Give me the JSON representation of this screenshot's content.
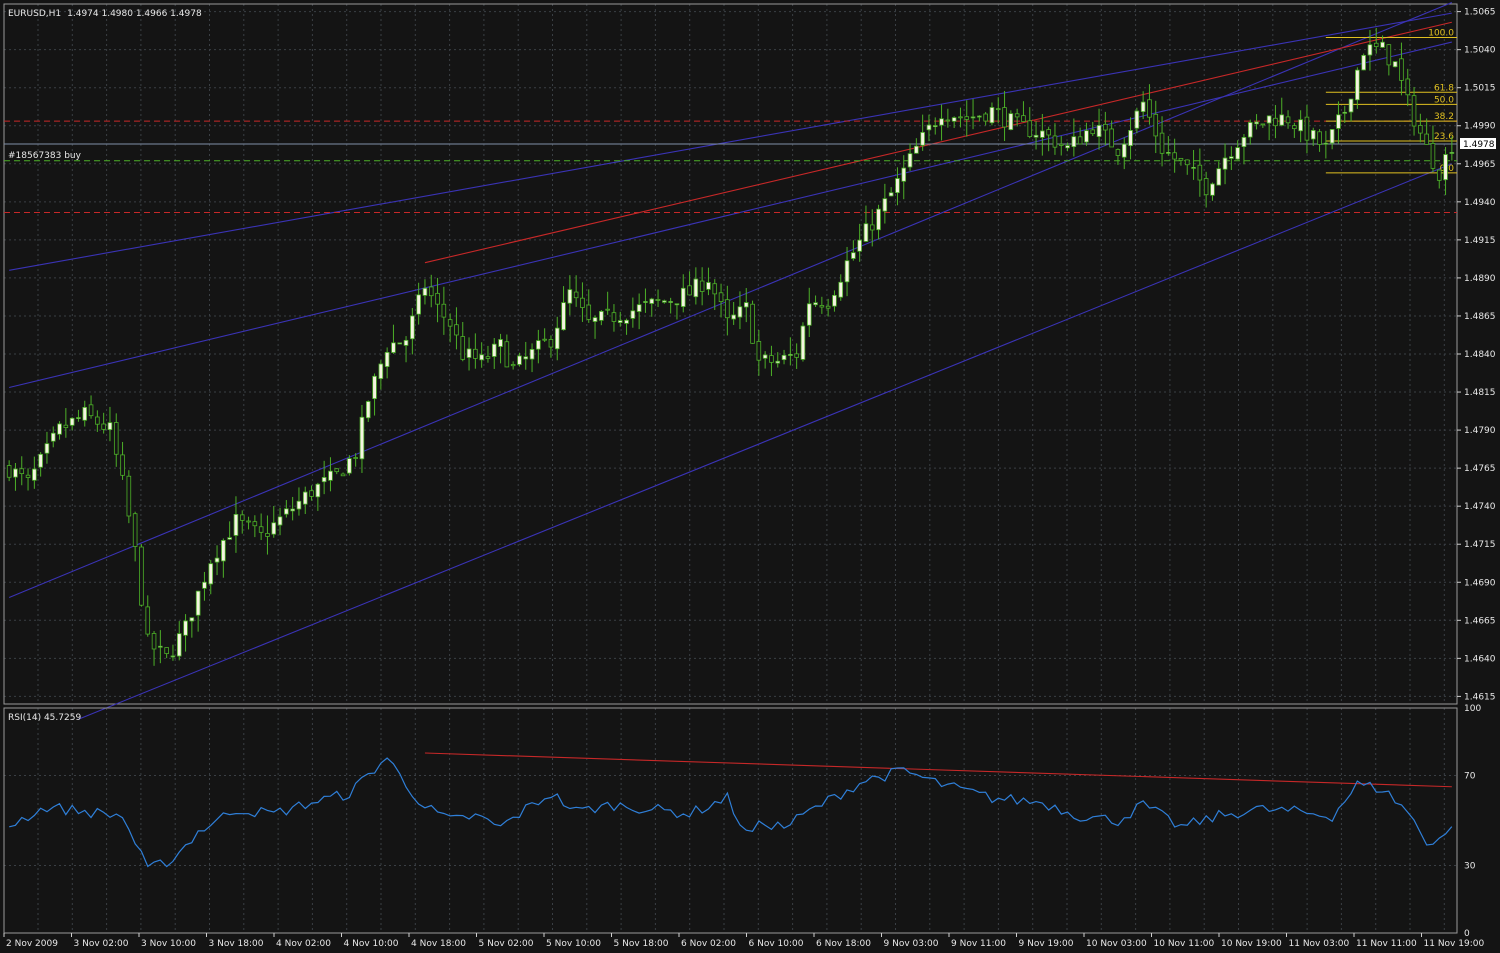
{
  "main_header": {
    "symbol": "EURUSD,H1",
    "ohlc": "1.4974 1.4980 1.4966 1.4978"
  },
  "order_label": "#18567383 buy",
  "current_price_label": "1.4978",
  "rsi_header": "RSI(14) 45.7259",
  "colors": {
    "background": "#141414",
    "grid": "#3a3f44",
    "bull_candle": "#f4f4e0",
    "bear_candle": "#141414",
    "wick": "#4caf28",
    "trendline_blue": "#3a33b5",
    "trendline_red": "#c62828",
    "fibonacci": "#e0c020",
    "rsi_line": "#2f7fd8",
    "axis_text": "#e8e8e8"
  },
  "fibonacci_levels": [
    {
      "label": "100.0",
      "price": 1.5048
    },
    {
      "label": "61.8",
      "price": 1.5012
    },
    {
      "label": "50.0",
      "price": 1.5004
    },
    {
      "label": "38.2",
      "price": 1.4993
    },
    {
      "label": "23.6",
      "price": 1.498
    },
    {
      "label": "0.0",
      "price": 1.4959
    }
  ],
  "chart_data": {
    "type": "candlestick",
    "timeframe": "H1",
    "symbol": "EURUSD",
    "price_axis": {
      "range": [
        1.461,
        1.507
      ],
      "ticks": [
        "1.5065",
        "1.5040",
        "1.5015",
        "1.4990",
        "1.4965",
        "1.4940",
        "1.4915",
        "1.4890",
        "1.4865",
        "1.4840",
        "1.4815",
        "1.4790",
        "1.4765",
        "1.4740",
        "1.4715",
        "1.4690",
        "1.4665",
        "1.4640",
        "1.4615"
      ],
      "current_price": 1.4978
    },
    "time_axis_labels": [
      "2 Nov 2009",
      "3 Nov 02:00",
      "3 Nov 10:00",
      "3 Nov 18:00",
      "4 Nov 02:00",
      "4 Nov 10:00",
      "4 Nov 18:00",
      "5 Nov 02:00",
      "5 Nov 10:00",
      "5 Nov 18:00",
      "6 Nov 02:00",
      "6 Nov 10:00",
      "6 Nov 18:00",
      "9 Nov 03:00",
      "9 Nov 11:00",
      "9 Nov 19:00",
      "10 Nov 03:00",
      "10 Nov 11:00",
      "10 Nov 19:00",
      "11 Nov 03:00",
      "11 Nov 11:00",
      "11 Nov 19:00"
    ],
    "close_anchors": [
      [
        0,
        1.4765
      ],
      [
        3,
        1.4755
      ],
      [
        8,
        1.479
      ],
      [
        12,
        1.48
      ],
      [
        16,
        1.479
      ],
      [
        18,
        1.4755
      ],
      [
        20,
        1.471
      ],
      [
        22,
        1.465
      ],
      [
        25,
        1.464
      ],
      [
        28,
        1.466
      ],
      [
        32,
        1.4705
      ],
      [
        36,
        1.473
      ],
      [
        40,
        1.472
      ],
      [
        44,
        1.4735
      ],
      [
        48,
        1.475
      ],
      [
        52,
        1.476
      ],
      [
        55,
        1.4775
      ],
      [
        57,
        1.481
      ],
      [
        60,
        1.4845
      ],
      [
        63,
        1.485
      ],
      [
        66,
        1.4885
      ],
      [
        68,
        1.487
      ],
      [
        70,
        1.486
      ],
      [
        72,
        1.484
      ],
      [
        75,
        1.4835
      ],
      [
        78,
        1.4845
      ],
      [
        80,
        1.483
      ],
      [
        83,
        1.484
      ],
      [
        86,
        1.485
      ],
      [
        89,
        1.488
      ],
      [
        92,
        1.486
      ],
      [
        96,
        1.4865
      ],
      [
        100,
        1.487
      ],
      [
        104,
        1.4875
      ],
      [
        108,
        1.488
      ],
      [
        111,
        1.489
      ],
      [
        114,
        1.486
      ],
      [
        117,
        1.487
      ],
      [
        119,
        1.4835
      ],
      [
        122,
        1.4835
      ],
      [
        125,
        1.484
      ],
      [
        127,
        1.4875
      ],
      [
        130,
        1.4875
      ],
      [
        133,
        1.49
      ],
      [
        136,
        1.492
      ],
      [
        140,
        1.4945
      ],
      [
        144,
        1.4975
      ],
      [
        148,
        1.5
      ],
      [
        152,
        1.4995
      ],
      [
        156,
        1.5
      ],
      [
        160,
        1.499
      ],
      [
        164,
        1.4985
      ],
      [
        168,
        1.4975
      ],
      [
        172,
        1.499
      ],
      [
        176,
        1.4975
      ],
      [
        180,
        1.5005
      ],
      [
        183,
        1.4975
      ],
      [
        186,
        1.4965
      ],
      [
        190,
        1.495
      ],
      [
        193,
        1.497
      ],
      [
        196,
        1.4985
      ],
      [
        200,
        1.4995
      ],
      [
        203,
        1.4995
      ],
      [
        206,
        1.4985
      ],
      [
        209,
        1.4975
      ],
      [
        212,
        1.5
      ],
      [
        215,
        1.504
      ],
      [
        218,
        1.504
      ],
      [
        220,
        1.503
      ],
      [
        222,
        1.5005
      ],
      [
        225,
        1.4975
      ],
      [
        227,
        1.496
      ],
      [
        229,
        1.4978
      ]
    ],
    "rsi": {
      "name": "RSI(14)",
      "current": 45.7259,
      "levels": [
        30,
        70
      ],
      "range": [
        0,
        100
      ],
      "ticks": [
        "100",
        "70",
        "30",
        "0"
      ],
      "anchors": [
        [
          0,
          48
        ],
        [
          6,
          56
        ],
        [
          12,
          54
        ],
        [
          18,
          52
        ],
        [
          22,
          28
        ],
        [
          26,
          33
        ],
        [
          30,
          45
        ],
        [
          36,
          55
        ],
        [
          42,
          53
        ],
        [
          48,
          58
        ],
        [
          54,
          62
        ],
        [
          58,
          73
        ],
        [
          60,
          78
        ],
        [
          63,
          66
        ],
        [
          66,
          56
        ],
        [
          70,
          50
        ],
        [
          74,
          52
        ],
        [
          78,
          47
        ],
        [
          82,
          55
        ],
        [
          86,
          62
        ],
        [
          90,
          54
        ],
        [
          96,
          57
        ],
        [
          102,
          55
        ],
        [
          108,
          53
        ],
        [
          114,
          60
        ],
        [
          117,
          44
        ],
        [
          120,
          49
        ],
        [
          123,
          47
        ],
        [
          127,
          54
        ],
        [
          132,
          62
        ],
        [
          136,
          68
        ],
        [
          142,
          72
        ],
        [
          148,
          66
        ],
        [
          156,
          60
        ],
        [
          164,
          58
        ],
        [
          170,
          52
        ],
        [
          176,
          50
        ],
        [
          180,
          57
        ],
        [
          186,
          47
        ],
        [
          192,
          52
        ],
        [
          198,
          55
        ],
        [
          204,
          54
        ],
        [
          210,
          52
        ],
        [
          214,
          66
        ],
        [
          218,
          64
        ],
        [
          222,
          54
        ],
        [
          225,
          40
        ],
        [
          228,
          44
        ],
        [
          229,
          46
        ]
      ]
    },
    "annotations": [
      {
        "type": "trendline",
        "panel": "price",
        "color": "blue",
        "from": [
          0,
          1.4895
        ],
        "to": [
          229,
          1.5064
        ]
      },
      {
        "type": "trendline",
        "panel": "price",
        "color": "blue",
        "from": [
          0,
          1.4818
        ],
        "to": [
          229,
          1.5045
        ]
      },
      {
        "type": "trendline",
        "panel": "price",
        "color": "blue",
        "from": [
          0,
          1.468
        ],
        "to": [
          229,
          1.5071
        ]
      },
      {
        "type": "trendline",
        "panel": "price",
        "color": "blue",
        "from": [
          11,
          1.46
        ],
        "to": [
          229,
          1.4965
        ]
      },
      {
        "type": "trendline",
        "panel": "price",
        "color": "red",
        "from": [
          66,
          1.49
        ],
        "to": [
          229,
          1.5058
        ]
      },
      {
        "type": "hline",
        "panel": "price",
        "color": "red",
        "dash": true,
        "price": 1.4993
      },
      {
        "type": "hline",
        "panel": "price",
        "color": "red",
        "dash": true,
        "price": 1.4933
      },
      {
        "type": "hline",
        "panel": "price",
        "color": "green",
        "dash": true,
        "price": 1.4967
      },
      {
        "type": "hline",
        "panel": "price",
        "color": "blue",
        "dash": false,
        "price": 1.4978
      },
      {
        "type": "trendline",
        "panel": "rsi",
        "color": "red",
        "from": [
          66,
          80
        ],
        "to": [
          229,
          65
        ]
      }
    ]
  }
}
